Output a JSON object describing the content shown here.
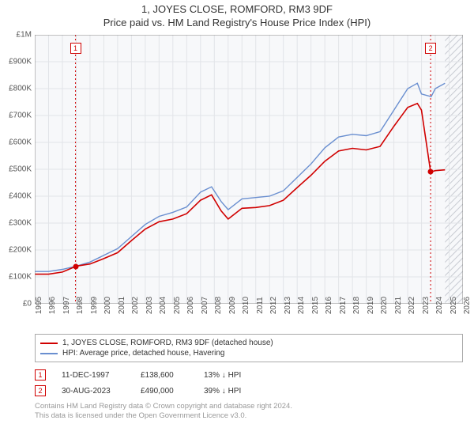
{
  "title": "1, JOYES CLOSE, ROMFORD, RM3 9DF",
  "subtitle": "Price paid vs. HM Land Registry's House Price Index (HPI)",
  "chart": {
    "type": "line",
    "background_color": "#f7f8fa",
    "grid_color": "#e2e4e8",
    "axis_color": "#888",
    "ylim": [
      0,
      1000000
    ],
    "ytick_step": 100000,
    "ytick_labels": [
      "£0",
      "£100K",
      "£200K",
      "£300K",
      "£400K",
      "£500K",
      "£600K",
      "£700K",
      "£800K",
      "£900K",
      "£1M"
    ],
    "xlim": [
      1995,
      2026
    ],
    "xtick_step": 1,
    "xtick_labels": [
      "1995",
      "1996",
      "1997",
      "1998",
      "1999",
      "2000",
      "2001",
      "2002",
      "2003",
      "2004",
      "2005",
      "2006",
      "2007",
      "2008",
      "2009",
      "2010",
      "2011",
      "2012",
      "2013",
      "2014",
      "2015",
      "2016",
      "2017",
      "2018",
      "2019",
      "2020",
      "2021",
      "2022",
      "2023",
      "2024",
      "2025",
      "2026"
    ],
    "hatch_start": 2024.7,
    "series": [
      {
        "name": "hpi",
        "label": "HPI: Average price, detached house, Havering",
        "color": "#6a8fd0",
        "width": 1.4,
        "data": [
          [
            1995,
            120000
          ],
          [
            1996,
            120000
          ],
          [
            1997,
            128000
          ],
          [
            1998,
            140000
          ],
          [
            1999,
            155000
          ],
          [
            2000,
            180000
          ],
          [
            2001,
            205000
          ],
          [
            2002,
            250000
          ],
          [
            2003,
            295000
          ],
          [
            2004,
            325000
          ],
          [
            2005,
            340000
          ],
          [
            2006,
            360000
          ],
          [
            2007,
            415000
          ],
          [
            2007.8,
            435000
          ],
          [
            2008.5,
            380000
          ],
          [
            2009,
            350000
          ],
          [
            2010,
            390000
          ],
          [
            2011,
            395000
          ],
          [
            2012,
            400000
          ],
          [
            2013,
            420000
          ],
          [
            2014,
            470000
          ],
          [
            2015,
            520000
          ],
          [
            2016,
            580000
          ],
          [
            2017,
            620000
          ],
          [
            2018,
            630000
          ],
          [
            2019,
            625000
          ],
          [
            2020,
            640000
          ],
          [
            2021,
            720000
          ],
          [
            2022,
            800000
          ],
          [
            2022.7,
            820000
          ],
          [
            2023,
            780000
          ],
          [
            2023.7,
            770000
          ],
          [
            2024,
            800000
          ],
          [
            2024.7,
            820000
          ]
        ]
      },
      {
        "name": "property",
        "label": "1, JOYES CLOSE, ROMFORD, RM3 9DF (detached house)",
        "color": "#d00000",
        "width": 1.6,
        "data": [
          [
            1995,
            110000
          ],
          [
            1996,
            110000
          ],
          [
            1997,
            118000
          ],
          [
            1997.95,
            138600
          ],
          [
            1998,
            140000
          ],
          [
            1999,
            148000
          ],
          [
            2000,
            168000
          ],
          [
            2001,
            190000
          ],
          [
            2002,
            235000
          ],
          [
            2003,
            278000
          ],
          [
            2004,
            305000
          ],
          [
            2005,
            315000
          ],
          [
            2006,
            335000
          ],
          [
            2007,
            385000
          ],
          [
            2007.8,
            405000
          ],
          [
            2008.5,
            345000
          ],
          [
            2009,
            315000
          ],
          [
            2010,
            355000
          ],
          [
            2011,
            358000
          ],
          [
            2012,
            365000
          ],
          [
            2013,
            385000
          ],
          [
            2014,
            432000
          ],
          [
            2015,
            478000
          ],
          [
            2016,
            530000
          ],
          [
            2017,
            568000
          ],
          [
            2018,
            578000
          ],
          [
            2019,
            572000
          ],
          [
            2020,
            585000
          ],
          [
            2021,
            660000
          ],
          [
            2022,
            730000
          ],
          [
            2022.7,
            745000
          ],
          [
            2023,
            720000
          ],
          [
            2023.66,
            490000
          ],
          [
            2024,
            495000
          ],
          [
            2024.7,
            498000
          ]
        ]
      }
    ],
    "event_markers": [
      {
        "n": "1",
        "year": 1997.95,
        "price": 138600,
        "box_top": 10
      },
      {
        "n": "2",
        "year": 2023.66,
        "price": 490000,
        "box_top": 10
      }
    ],
    "vline_color": "#d00000",
    "vline_dash": "2,3"
  },
  "legend": {
    "items": [
      {
        "color": "#d00000",
        "label": "1, JOYES CLOSE, ROMFORD, RM3 9DF (detached house)"
      },
      {
        "color": "#6a8fd0",
        "label": "HPI: Average price, detached house, Havering"
      }
    ]
  },
  "events": [
    {
      "n": "1",
      "date": "11-DEC-1997",
      "price": "£138,600",
      "diff": "13% ↓ HPI"
    },
    {
      "n": "2",
      "date": "30-AUG-2023",
      "price": "£490,000",
      "diff": "39% ↓ HPI"
    }
  ],
  "footer_line1": "Contains HM Land Registry data © Crown copyright and database right 2024.",
  "footer_line2": "This data is licensed under the Open Government Licence v3.0."
}
